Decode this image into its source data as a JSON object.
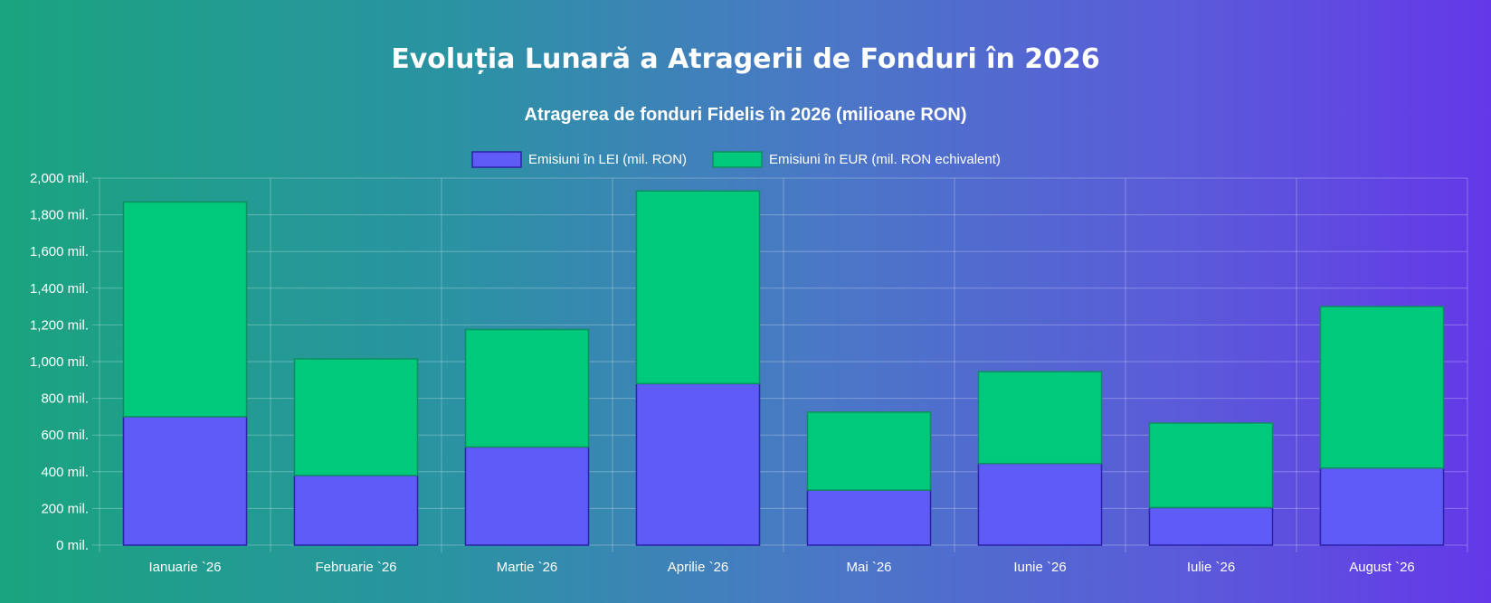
{
  "page": {
    "title": "Evoluția Lunară a Atragerii de Fonduri în 2026"
  },
  "colors": {
    "lei_fill": "#5f5bf6",
    "lei_stroke": "#2c23a8",
    "eur_fill": "#00c97c",
    "eur_stroke": "#0e8f5f",
    "grid": "rgba(255,255,255,0.28)"
  },
  "chart_data": {
    "type": "bar",
    "stacked": true,
    "title": "Atragerea de fonduri Fidelis în 2026 (milioane RON)",
    "categories": [
      "Ianuarie `26",
      "Februarie `26",
      "Martie `26",
      "Aprilie `26",
      "Mai `26",
      "Iunie `26",
      "Iulie `26",
      "August `26"
    ],
    "series": [
      {
        "name": "Emisiuni în LEI (mil. RON)",
        "values": [
          700,
          380,
          535,
          880,
          300,
          445,
          205,
          420
        ]
      },
      {
        "name": "Emisiuni în EUR (mil. RON echivalent)",
        "values": [
          1170,
          635,
          640,
          1050,
          425,
          500,
          460,
          880
        ]
      }
    ],
    "ylim": [
      0,
      2000
    ],
    "yticks": [
      0,
      200,
      400,
      600,
      800,
      1000,
      1200,
      1400,
      1600,
      1800,
      2000
    ],
    "ytick_labels": [
      "0 mil.",
      "200 mil.",
      "400 mil.",
      "600 mil.",
      "800 mil.",
      "1,000 mil.",
      "1,200 mil.",
      "1,400 mil.",
      "1,600 mil.",
      "1,800 mil.",
      "2,000 mil."
    ],
    "grid": true,
    "legend_position": "top-center"
  }
}
